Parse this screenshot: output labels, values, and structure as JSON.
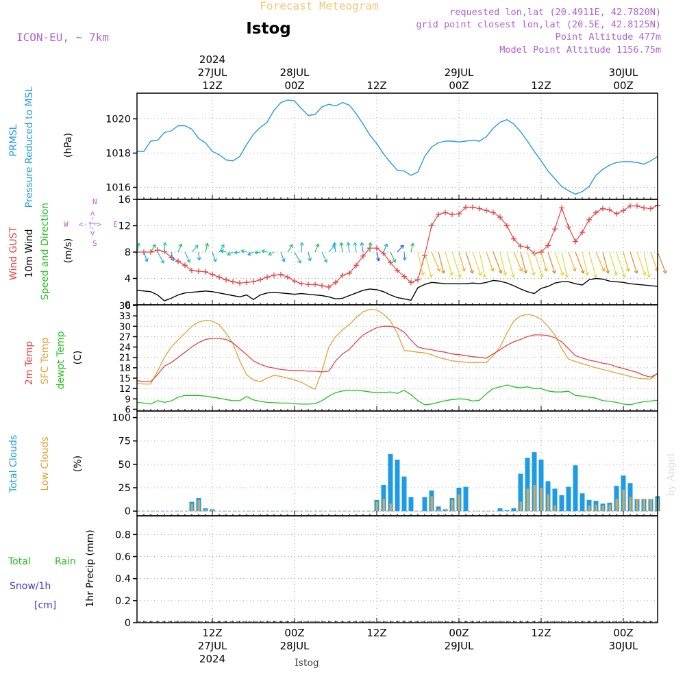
{
  "header": {
    "title": "Forecast Meteogram",
    "station": "Istog",
    "model": "ICON-EU, ~ 7km",
    "requested": "requested lon,lat (20.4911E, 42.7820N)",
    "grid_point": "grid point closest lon,lat (20.5E, 42.8125N)",
    "point_altitude": "Point Altitude 477m",
    "model_altitude": "Model Point Altitude 1156.75m",
    "footer_station": "Istog",
    "watermark": "by Angel"
  },
  "time_axis": {
    "top_labels": [
      {
        "hour": 12,
        "lines": [
          "2024",
          "27JUL",
          "12Z"
        ]
      },
      {
        "hour": 24,
        "lines": [
          "28JUL",
          "00Z"
        ]
      },
      {
        "hour": 36,
        "lines": [
          "12Z"
        ]
      },
      {
        "hour": 48,
        "lines": [
          "29JUL",
          "00Z"
        ]
      },
      {
        "hour": 60,
        "lines": [
          "12Z"
        ]
      },
      {
        "hour": 72,
        "lines": [
          "30JUL",
          "00Z"
        ]
      }
    ],
    "bottom_labels": [
      {
        "hour": 12,
        "lines": [
          "12Z",
          "27JUL",
          "2024"
        ]
      },
      {
        "hour": 24,
        "lines": [
          "00Z",
          "28JUL"
        ]
      },
      {
        "hour": 36,
        "lines": [
          "12Z"
        ]
      },
      {
        "hour": 48,
        "lines": [
          "00Z",
          "29JUL"
        ]
      },
      {
        "hour": 60,
        "lines": [
          "12Z"
        ]
      },
      {
        "hour": 72,
        "lines": [
          "00Z",
          "30JUL"
        ]
      }
    ]
  },
  "colors": {
    "pressure": "#1e9be6",
    "gust": "#e84040",
    "wind": "#000000",
    "direction_label": "#20c020",
    "temp2m": "#e84040",
    "sfc": "#e0a030",
    "dewpt": "#20c020",
    "total_clouds": "#1e9be6",
    "low_clouds": "#c8a860",
    "rain": "#20c020",
    "snow": "#3a3ae0",
    "compass": "#c060e0",
    "title": "#f0c878",
    "info": "#b060d0"
  },
  "panels": {
    "pressure": {
      "label1": "PRMSL",
      "label2": "Pressure Reduced to MSL",
      "unit": "(hPa)",
      "ticks": [
        "1016",
        "1018",
        "1020"
      ]
    },
    "wind": {
      "label_gust": "Wind GUST",
      "label_wind": "10m Wind",
      "label_dir": "Speed and Direction",
      "unit": "(m/s)",
      "ticks": [
        "0",
        "4",
        "8",
        "12",
        "16"
      ],
      "compass": {
        "n": "N",
        "w": "W",
        "e": "E",
        "s": "S",
        "row": "<-|->"
      }
    },
    "temp": {
      "label1": "2m Temp",
      "label2": "SFC Temp",
      "label3": "dewpt Temp",
      "unit": "(C)",
      "ticks": [
        "6",
        "9",
        "12",
        "15",
        "18",
        "21",
        "24",
        "27",
        "30",
        "33",
        "36"
      ]
    },
    "clouds": {
      "label1": "Total Clouds",
      "label2": "Low Clouds",
      "unit": "(%)",
      "ticks": [
        "0",
        "25",
        "50",
        "75",
        "100"
      ]
    },
    "precip": {
      "label1": "Total",
      "label1b": "Rain",
      "label2": "Snow/1h",
      "label3": "[cm]",
      "unit": "1hr Precip (mm)",
      "ticks": [
        "0",
        "0.2",
        "0.4",
        "0.6",
        "0.8"
      ]
    }
  },
  "chart_data": {
    "type": "line",
    "x_unit": "hours from 27JUL 00Z",
    "x_range": [
      1,
      77
    ],
    "pressure": {
      "ylim": [
        1015.3,
        1021.5
      ],
      "x": [
        1,
        2,
        3,
        4,
        5,
        6,
        7,
        8,
        9,
        10,
        11,
        12,
        13,
        14,
        15,
        16,
        17,
        18,
        19,
        20,
        21,
        22,
        23,
        24,
        25,
        26,
        27,
        28,
        29,
        30,
        31,
        32,
        33,
        34,
        35,
        36,
        37,
        38,
        39,
        40,
        41,
        42,
        43,
        44,
        45,
        46,
        47,
        48,
        49,
        50,
        51,
        52,
        53,
        54,
        55,
        56,
        57,
        58,
        59,
        60,
        61,
        62,
        63,
        64,
        65,
        66,
        67,
        68,
        69,
        70,
        71,
        72,
        73,
        74,
        75,
        76,
        77
      ],
      "values": [
        1018.1,
        1018.1,
        1018.7,
        1018.75,
        1019.2,
        1019.3,
        1019.6,
        1019.6,
        1019.4,
        1018.85,
        1018.6,
        1018.1,
        1017.9,
        1017.6,
        1017.55,
        1017.8,
        1018.5,
        1019.1,
        1019.5,
        1019.8,
        1020.5,
        1020.95,
        1021.1,
        1021.05,
        1020.6,
        1020.2,
        1020.25,
        1020.7,
        1020.85,
        1020.75,
        1020.95,
        1020.8,
        1020.3,
        1019.7,
        1019.05,
        1018.55,
        1017.95,
        1017.45,
        1017.0,
        1016.95,
        1016.7,
        1016.9,
        1017.8,
        1018.35,
        1018.6,
        1018.7,
        1018.7,
        1018.65,
        1018.7,
        1018.75,
        1018.7,
        1018.95,
        1019.45,
        1019.8,
        1019.95,
        1019.7,
        1019.25,
        1018.7,
        1018.1,
        1017.55,
        1016.95,
        1016.5,
        1016.05,
        1015.8,
        1015.6,
        1015.75,
        1016.05,
        1016.7,
        1017.05,
        1017.3,
        1017.45,
        1017.5,
        1017.5,
        1017.45,
        1017.35,
        1017.55,
        1017.8
      ]
    },
    "wind": {
      "ylim": [
        0,
        16
      ],
      "x": [
        1,
        2,
        3,
        4,
        5,
        6,
        7,
        8,
        9,
        10,
        11,
        12,
        13,
        14,
        15,
        16,
        17,
        18,
        19,
        20,
        21,
        22,
        23,
        24,
        25,
        26,
        27,
        28,
        29,
        30,
        31,
        32,
        33,
        34,
        35,
        36,
        37,
        38,
        39,
        40,
        41,
        42,
        43,
        44,
        45,
        46,
        47,
        48,
        49,
        50,
        51,
        52,
        53,
        54,
        55,
        56,
        57,
        58,
        59,
        60,
        61,
        62,
        63,
        64,
        65,
        66,
        67,
        68,
        69,
        70,
        71,
        72,
        73,
        74,
        75,
        76,
        77
      ],
      "gust": [
        8.0,
        8.0,
        8.0,
        8.3,
        8.1,
        7.2,
        6.6,
        6.0,
        5.2,
        5.1,
        5.0,
        4.6,
        4.2,
        3.8,
        3.5,
        3.3,
        3.4,
        3.5,
        3.8,
        4.2,
        4.5,
        4.6,
        4.2,
        3.6,
        3.2,
        3.1,
        3.1,
        2.9,
        2.7,
        3.4,
        4.5,
        4.8,
        6.0,
        7.4,
        8.6,
        8.6,
        7.8,
        6.4,
        5.2,
        4.3,
        3.4,
        3.8,
        7.5,
        12.0,
        13.7,
        14.0,
        13.7,
        13.8,
        14.8,
        14.8,
        14.6,
        14.3,
        14.0,
        13.3,
        12.0,
        10.0,
        8.9,
        8.7,
        7.8,
        8.0,
        9.0,
        11.5,
        14.7,
        11.8,
        9.6,
        11.0,
        12.9,
        14.0,
        14.6,
        14.4,
        13.8,
        14.3,
        15.0,
        15.0,
        14.7,
        14.6,
        15.1
      ],
      "wind10m": [
        2.2,
        2.1,
        2.0,
        1.5,
        0.6,
        1.0,
        1.5,
        1.8,
        1.9,
        2.0,
        2.1,
        2.0,
        1.8,
        1.6,
        1.4,
        1.2,
        1.5,
        0.8,
        1.5,
        1.8,
        1.9,
        1.8,
        1.7,
        1.6,
        1.7,
        1.6,
        1.5,
        1.4,
        1.2,
        0.9,
        1.0,
        1.4,
        1.8,
        2.2,
        2.4,
        2.3,
        2.0,
        1.5,
        1.1,
        0.9,
        0.7,
        2.6,
        3.1,
        3.4,
        3.3,
        3.2,
        3.2,
        3.2,
        3.2,
        3.3,
        3.2,
        3.4,
        3.7,
        3.6,
        3.3,
        2.9,
        2.4,
        2.0,
        1.7,
        2.5,
        2.8,
        3.3,
        3.5,
        3.5,
        3.2,
        3.0,
        3.8,
        4.0,
        3.9,
        3.6,
        3.5,
        3.4,
        3.2,
        3.1,
        3.0,
        2.9,
        2.8
      ]
    },
    "temperature": {
      "ylim": [
        5.5,
        36.2
      ],
      "x": [
        1,
        2,
        3,
        4,
        5,
        6,
        7,
        8,
        9,
        10,
        11,
        12,
        13,
        14,
        15,
        16,
        17,
        18,
        19,
        20,
        21,
        22,
        23,
        24,
        25,
        26,
        27,
        28,
        29,
        30,
        31,
        32,
        33,
        34,
        35,
        36,
        37,
        38,
        39,
        40,
        41,
        42,
        43,
        44,
        45,
        46,
        47,
        48,
        49,
        50,
        51,
        52,
        53,
        54,
        55,
        56,
        57,
        58,
        59,
        60,
        61,
        62,
        63,
        64,
        65,
        66,
        67,
        68,
        69,
        70,
        71,
        72,
        73,
        74,
        75,
        76,
        77
      ],
      "temp2m": [
        14.3,
        14.0,
        14.0,
        16.0,
        18.5,
        19.5,
        21.0,
        22.5,
        24.0,
        25.3,
        26.2,
        26.5,
        26.5,
        26.2,
        25.2,
        23.5,
        21.8,
        20.0,
        19.0,
        18.3,
        17.9,
        17.5,
        17.3,
        17.2,
        17.2,
        17.0,
        17.0,
        16.8,
        17.0,
        20.0,
        22.0,
        23.3,
        25.5,
        27.5,
        28.6,
        29.6,
        30.0,
        30.0,
        29.5,
        28.3,
        26.0,
        24.0,
        23.5,
        23.2,
        22.8,
        22.5,
        22.0,
        21.8,
        21.5,
        21.2,
        21.0,
        20.8,
        22.0,
        23.2,
        24.5,
        25.5,
        26.2,
        27.0,
        27.5,
        27.5,
        27.3,
        26.7,
        25.5,
        23.5,
        21.5,
        20.8,
        20.2,
        19.8,
        19.3,
        19.0,
        18.3,
        17.8,
        17.2,
        16.7,
        15.8,
        15.3,
        16.3
      ],
      "sfc": [
        13.5,
        13.3,
        13.3,
        17.0,
        21.0,
        24.0,
        26.0,
        28.0,
        30.0,
        31.2,
        31.7,
        31.5,
        30.5,
        28.0,
        25.0,
        20.0,
        16.0,
        14.5,
        14.0,
        15.0,
        15.8,
        15.5,
        15.0,
        14.5,
        13.8,
        12.7,
        11.8,
        17.0,
        24.0,
        27.0,
        29.0,
        30.5,
        32.5,
        34.2,
        34.9,
        34.7,
        33.5,
        31.5,
        28.0,
        23.0,
        22.8,
        22.5,
        22.3,
        21.8,
        21.0,
        20.5,
        20.0,
        19.8,
        19.6,
        19.5,
        19.6,
        19.5,
        21.5,
        24.0,
        28.0,
        31.5,
        33.0,
        33.5,
        33.0,
        32.0,
        30.0,
        27.5,
        23.5,
        20.5,
        19.8,
        19.2,
        18.6,
        18.0,
        17.5,
        17.0,
        16.5,
        16.0,
        15.5,
        15.0,
        14.8,
        14.7,
        16.5
      ],
      "dewpt": [
        8.0,
        7.8,
        7.5,
        8.5,
        8.0,
        8.4,
        9.5,
        10.0,
        10.0,
        10.0,
        9.8,
        9.5,
        9.2,
        8.8,
        8.5,
        8.5,
        9.7,
        8.7,
        8.3,
        8.0,
        7.9,
        7.8,
        7.8,
        7.6,
        7.5,
        7.5,
        7.6,
        8.5,
        9.8,
        10.8,
        11.3,
        11.5,
        11.5,
        11.3,
        11.0,
        10.8,
        10.8,
        11.0,
        10.6,
        11.5,
        10.2,
        8.5,
        7.3,
        7.5,
        8.0,
        8.5,
        8.8,
        9.0,
        8.9,
        8.4,
        8.6,
        10.5,
        12.0,
        12.5,
        13.0,
        12.5,
        12.2,
        12.5,
        12.0,
        12.0,
        11.3,
        11.0,
        11.0,
        11.2,
        10.0,
        9.8,
        9.5,
        9.2,
        8.5,
        8.3,
        8.0,
        7.5,
        7.3,
        7.8,
        8.2,
        8.4,
        8.6
      ]
    },
    "clouds": {
      "ylim": [
        -5,
        107
      ],
      "x": [
        1,
        2,
        3,
        4,
        5,
        6,
        7,
        8,
        9,
        10,
        11,
        12,
        13,
        14,
        15,
        16,
        17,
        18,
        19,
        20,
        21,
        22,
        23,
        24,
        25,
        26,
        27,
        28,
        29,
        30,
        31,
        32,
        33,
        34,
        35,
        36,
        37,
        38,
        39,
        40,
        41,
        42,
        43,
        44,
        45,
        46,
        47,
        48,
        49,
        50,
        51,
        52,
        53,
        54,
        55,
        56,
        57,
        58,
        59,
        60,
        61,
        62,
        63,
        64,
        65,
        66,
        67,
        68,
        69,
        70,
        71,
        72,
        73,
        74,
        75,
        76,
        77
      ],
      "total": [
        0,
        0,
        0,
        0,
        0,
        0,
        0,
        0,
        10,
        14,
        3,
        2,
        0,
        0,
        0,
        0,
        0,
        0,
        0,
        0,
        0,
        0,
        0,
        0,
        0,
        0,
        0,
        0,
        0,
        0,
        0,
        0,
        0,
        0,
        0,
        12,
        28,
        61,
        55,
        37,
        15,
        0,
        15,
        22,
        5,
        2,
        14,
        25,
        26,
        0,
        0,
        0,
        0,
        3,
        1,
        3,
        40,
        57,
        63,
        55,
        32,
        24,
        17,
        26,
        49,
        19,
        12,
        11,
        8,
        9,
        27,
        38,
        30,
        13,
        13,
        13,
        16
      ],
      "low": [
        0,
        0,
        0,
        0,
        0,
        0,
        0,
        0,
        8,
        12,
        2,
        1,
        0,
        0,
        0,
        0,
        0,
        0,
        0,
        0,
        0,
        0,
        0,
        0,
        0,
        0,
        0,
        0,
        0,
        0,
        0,
        0,
        0,
        0,
        0,
        10,
        13,
        8,
        0,
        0,
        0,
        0,
        0,
        16,
        2,
        1,
        12,
        18,
        0,
        0,
        0,
        0,
        0,
        0,
        0,
        0,
        10,
        24,
        28,
        25,
        18,
        6,
        0,
        0,
        0,
        0,
        6,
        7,
        6,
        7,
        13,
        23,
        15,
        13,
        13,
        13,
        14
      ]
    },
    "precip": {
      "ylim": [
        0,
        0.97
      ],
      "values_note": "",
      "total_rain": [],
      "snow": []
    }
  }
}
